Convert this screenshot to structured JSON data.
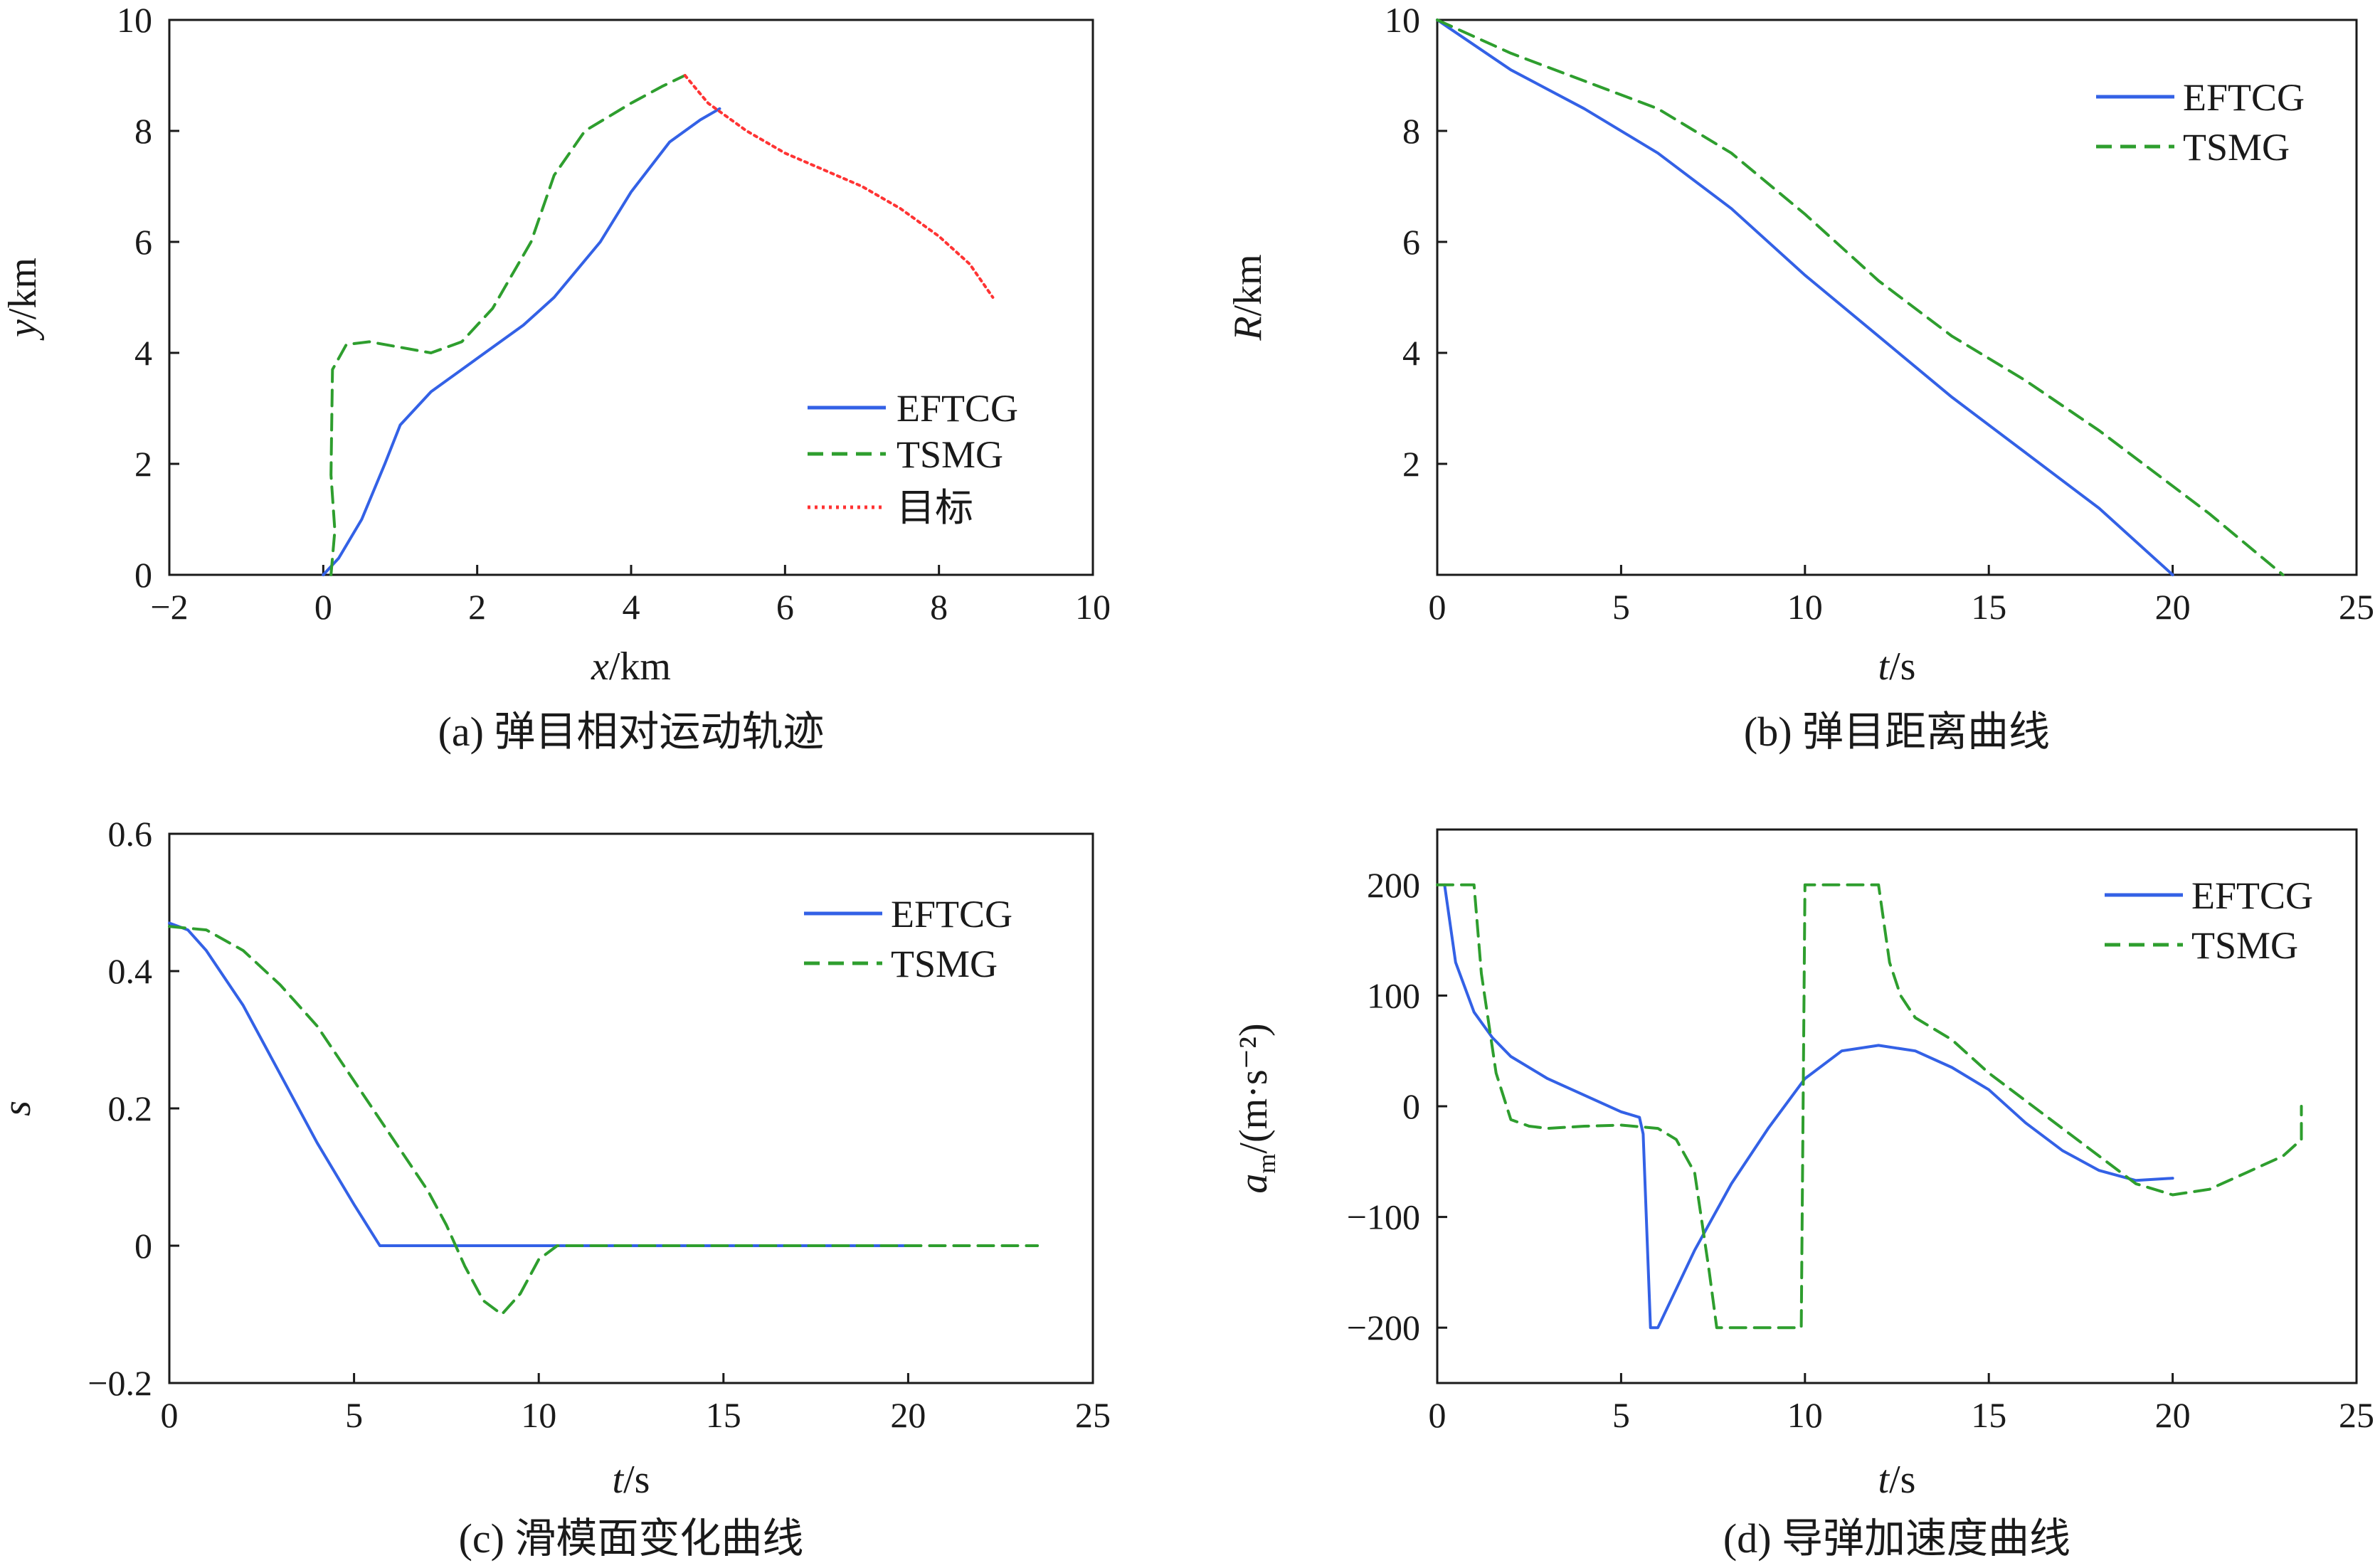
{
  "colors": {
    "efctg": "#3361e6",
    "tsmg": "#2e9e2e",
    "target": "#ff3333",
    "axes": "#1a1a1a"
  },
  "chart_data": [
    {
      "id": "a",
      "type": "line",
      "caption": "(a) 弹目相对运动轨迹",
      "xlabel": "x/km",
      "ylabel": "y/km",
      "xlim": [
        -2,
        10
      ],
      "ylim": [
        0,
        10
      ],
      "xticks": [
        -2,
        0,
        2,
        4,
        6,
        8,
        10
      ],
      "yticks": [
        0,
        2,
        4,
        6,
        8,
        10
      ],
      "xtick_labels": [
        "−2",
        "0",
        "2",
        "4",
        "6",
        "8",
        "10"
      ],
      "ytick_labels": [
        "0",
        "2",
        "4",
        "6",
        "8",
        "10"
      ],
      "legend_position": "bottom-right",
      "series": [
        {
          "name": "EFTCG",
          "style": "solid",
          "color_key": "efctg",
          "x": [
            0.0,
            0.2,
            0.5,
            0.8,
            1.0,
            1.4,
            2.0,
            2.6,
            3.0,
            3.6,
            4.0,
            4.5,
            4.9,
            5.15
          ],
          "y": [
            0.0,
            0.3,
            1.0,
            2.0,
            2.7,
            3.3,
            3.9,
            4.5,
            5.0,
            6.0,
            6.9,
            7.8,
            8.2,
            8.4
          ]
        },
        {
          "name": "TSMG",
          "style": "dashed",
          "color_key": "tsmg",
          "x": [
            0.1,
            0.15,
            0.1,
            0.12,
            0.3,
            0.6,
            1.0,
            1.4,
            1.8,
            2.2,
            2.7,
            3.0,
            3.4,
            4.0,
            4.4,
            4.7
          ],
          "y": [
            0.0,
            0.8,
            1.8,
            3.7,
            4.15,
            4.2,
            4.1,
            4.0,
            4.2,
            4.8,
            6.0,
            7.2,
            8.0,
            8.5,
            8.8,
            9.0
          ]
        },
        {
          "name": "目标",
          "style": "dotted",
          "color_key": "target",
          "x": [
            4.7,
            5.0,
            5.5,
            6.0,
            6.5,
            7.0,
            7.5,
            8.0,
            8.4,
            8.7
          ],
          "y": [
            9.0,
            8.5,
            8.0,
            7.6,
            7.3,
            7.0,
            6.6,
            6.1,
            5.6,
            5.0
          ]
        }
      ]
    },
    {
      "id": "b",
      "type": "line",
      "caption": "(b) 弹目距离曲线",
      "xlabel": "t/s",
      "ylabel": "R/km",
      "xlim": [
        0,
        25
      ],
      "ylim": [
        0,
        10
      ],
      "xticks": [
        0,
        5,
        10,
        15,
        20,
        25
      ],
      "yticks": [
        2,
        4,
        6,
        8,
        10
      ],
      "xtick_labels": [
        "0",
        "5",
        "10",
        "15",
        "20",
        "25"
      ],
      "ytick_labels": [
        "2",
        "4",
        "6",
        "8",
        "10"
      ],
      "legend_position": "top-right",
      "series": [
        {
          "name": "EFTCG",
          "style": "solid",
          "color_key": "efctg",
          "x": [
            0,
            2,
            4,
            6,
            8,
            10,
            12,
            14,
            16,
            18,
            20
          ],
          "y": [
            10.0,
            9.1,
            8.4,
            7.6,
            6.6,
            5.4,
            4.3,
            3.2,
            2.2,
            1.2,
            0.0
          ]
        },
        {
          "name": "TSMG",
          "style": "dashed",
          "color_key": "tsmg",
          "x": [
            0,
            2,
            4,
            6,
            8,
            10,
            12,
            14,
            16,
            18,
            20,
            21,
            23
          ],
          "y": [
            10.0,
            9.4,
            8.9,
            8.4,
            7.6,
            6.5,
            5.3,
            4.3,
            3.5,
            2.6,
            1.6,
            1.1,
            0.0
          ]
        }
      ]
    },
    {
      "id": "c",
      "type": "line",
      "caption": "(c) 滑模面变化曲线",
      "xlabel": "t/s",
      "ylabel": "s",
      "xlim": [
        0,
        25
      ],
      "ylim": [
        -0.2,
        0.6
      ],
      "xticks": [
        0,
        5,
        10,
        15,
        20,
        25
      ],
      "yticks": [
        -0.2,
        0,
        0.2,
        0.4,
        0.6
      ],
      "xtick_labels": [
        "0",
        "5",
        "10",
        "15",
        "20",
        "25"
      ],
      "ytick_labels": [
        "−0.2",
        "0",
        "0.2",
        "0.4",
        "0.6"
      ],
      "legend_position": "top-right",
      "series": [
        {
          "name": "EFTCG",
          "style": "solid",
          "color_key": "efctg",
          "x": [
            0,
            0.5,
            1.0,
            2.0,
            3.0,
            4.0,
            5.0,
            5.7,
            6.0,
            10.0,
            15.0,
            20.0
          ],
          "y": [
            0.47,
            0.46,
            0.43,
            0.35,
            0.25,
            0.15,
            0.06,
            0.0,
            0.0,
            0.0,
            0.0,
            0.0
          ]
        },
        {
          "name": "TSMG",
          "style": "dashed",
          "color_key": "tsmg",
          "x": [
            0,
            1,
            2,
            3,
            4,
            5,
            6,
            7,
            7.5,
            8,
            8.5,
            9,
            9.5,
            10,
            10.5,
            12,
            15,
            20,
            23.5
          ],
          "y": [
            0.465,
            0.46,
            0.43,
            0.38,
            0.32,
            0.24,
            0.16,
            0.08,
            0.03,
            -0.03,
            -0.08,
            -0.1,
            -0.07,
            -0.02,
            0.0,
            0.0,
            0.0,
            0.0,
            0.0
          ]
        }
      ]
    },
    {
      "id": "d",
      "type": "line",
      "caption": "(d) 导弹加速度曲线",
      "xlabel": "t/s",
      "ylabel_main": "a",
      "ylabel_sub": "m",
      "ylabel_rest": "/(m·s⁻²)",
      "xlim": [
        0,
        25
      ],
      "ylim": [
        -250,
        250
      ],
      "xticks": [
        0,
        5,
        10,
        15,
        20,
        25
      ],
      "yticks": [
        -200,
        -100,
        0,
        100,
        200
      ],
      "xtick_labels": [
        "0",
        "5",
        "10",
        "15",
        "20",
        "25"
      ],
      "ytick_labels": [
        "−200",
        "−100",
        "0",
        "100",
        "200"
      ],
      "legend_position": "top-right",
      "series": [
        {
          "name": "EFTCG",
          "style": "solid",
          "color_key": "efctg",
          "x": [
            0.2,
            0.5,
            1.0,
            1.5,
            2.0,
            3.0,
            4.0,
            5.0,
            5.5,
            5.6,
            5.8,
            6.0,
            7.0,
            8.0,
            9.0,
            10.0,
            11.0,
            12.0,
            13.0,
            14.0,
            15.0,
            16.0,
            17.0,
            18.0,
            19.0,
            20.0
          ],
          "y": [
            200,
            130,
            85,
            62,
            45,
            25,
            10,
            -5,
            -10,
            -25,
            -200,
            -200,
            -130,
            -70,
            -20,
            25,
            50,
            55,
            50,
            35,
            15,
            -15,
            -40,
            -58,
            -67,
            -65
          ]
        },
        {
          "name": "TSMG",
          "style": "dashed",
          "color_key": "tsmg",
          "x": [
            0.0,
            1.0,
            1.2,
            1.6,
            2.0,
            2.5,
            3.0,
            4.0,
            5.0,
            6.0,
            6.5,
            7.0,
            7.4,
            7.6,
            8.0,
            9.0,
            9.9,
            10.0,
            11.0,
            12.0,
            12.3,
            12.6,
            13.0,
            14.0,
            15.0,
            16.0,
            17.0,
            18.0,
            19.0,
            20.0,
            21.0,
            22.0,
            23.0,
            23.5,
            23.5
          ],
          "y": [
            200,
            200,
            120,
            30,
            -12,
            -18,
            -20,
            -18,
            -17,
            -20,
            -30,
            -60,
            -150,
            -200,
            -200,
            -200,
            -200,
            200,
            200,
            200,
            130,
            100,
            80,
            60,
            30,
            5,
            -20,
            -45,
            -70,
            -80,
            -75,
            -60,
            -45,
            -30,
            0
          ]
        }
      ]
    }
  ]
}
